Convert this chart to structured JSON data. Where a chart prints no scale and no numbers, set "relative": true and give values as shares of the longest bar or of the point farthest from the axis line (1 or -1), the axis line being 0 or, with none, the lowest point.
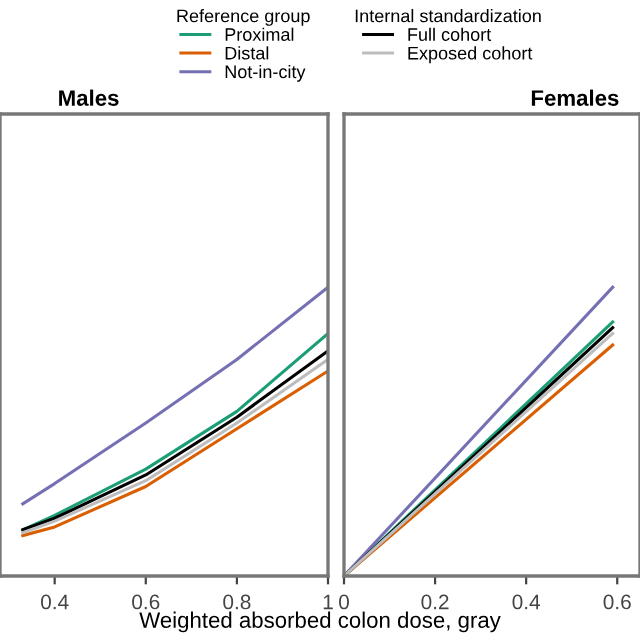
{
  "chart_data": [
    {
      "type": "line",
      "title": "Males",
      "relative": true,
      "xlim": [
        0.28,
        1
      ],
      "xticks": [
        0.4,
        0.6,
        0.8,
        1
      ],
      "xlabel": "Weighted absorbed colon dose, gray",
      "legend": "top",
      "legend_title": "Reference group",
      "annotations": [
        "Internal standardization"
      ],
      "line_style": "solid",
      "marker": "none",
      "x": [
        0.33,
        0.4,
        0.6,
        0.8,
        1
      ],
      "series": [
        {
          "name": "Proximal",
          "color": "#1b9e77",
          "values": [
            0.16,
            0.21,
            0.37,
            0.57,
            0.84
          ]
        },
        {
          "name": "Distal",
          "color": "#d95f02",
          "values": [
            0.14,
            0.17,
            0.31,
            0.51,
            0.71
          ]
        },
        {
          "name": "Not-in-city",
          "color": "#7570b3",
          "values": [
            0.25,
            0.32,
            0.53,
            0.75,
            1
          ]
        },
        {
          "name": "Full cohort",
          "color": "#000000",
          "values": [
            0.16,
            0.2,
            0.35,
            0.55,
            0.78
          ]
        },
        {
          "name": "Exposed cohort",
          "color": "#bdbdbd",
          "values": [
            0.15,
            0.19,
            0.33,
            0.53,
            0.75
          ]
        }
      ]
    },
    {
      "type": "line",
      "title": "Females",
      "relative": true,
      "xlim": [
        0,
        0.65
      ],
      "xticks": [
        0,
        0.2,
        0.4,
        0.6
      ],
      "line_style": "solid",
      "marker": "none",
      "x": [
        0,
        0.59
      ],
      "series": [
        {
          "color": "#1b9e77",
          "values": [
            0,
            0.88
          ]
        },
        {
          "color": "#d95f02",
          "values": [
            0,
            0.8
          ]
        },
        {
          "color": "#7570b3",
          "values": [
            0,
            1
          ]
        },
        {
          "color": "#000000",
          "values": [
            0,
            0.86
          ]
        },
        {
          "color": "#bdbdbd",
          "values": [
            0,
            0.84
          ]
        }
      ]
    }
  ]
}
